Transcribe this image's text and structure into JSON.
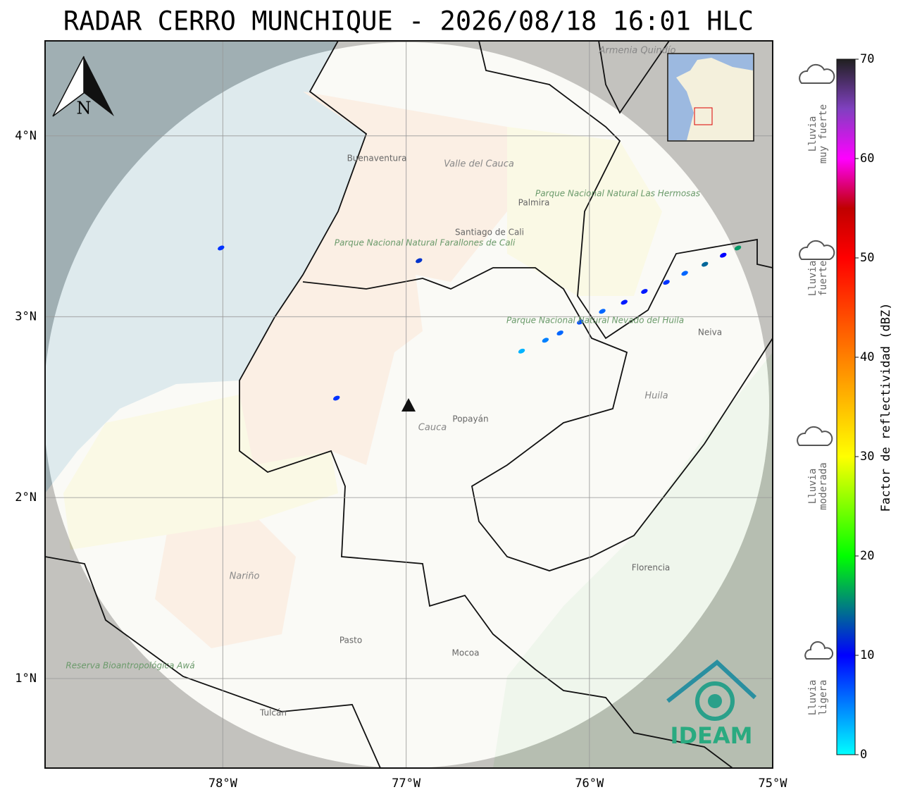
{
  "title": "RADAR CERRO MUNCHIQUE - 2026/08/18 16:01 HLC",
  "map": {
    "xlim": [
      -78.97,
      -75
    ],
    "ylim": [
      0.505,
      4.525
    ],
    "xticks": [
      {
        "value": -78,
        "label": "78°W"
      },
      {
        "value": -77,
        "label": "77°W"
      },
      {
        "value": -76,
        "label": "76°W"
      },
      {
        "value": -75,
        "label": "75°W"
      }
    ],
    "yticks": [
      {
        "value": 1,
        "label": "1°N"
      },
      {
        "value": 2,
        "label": "2°N"
      },
      {
        "value": 3,
        "label": "3°N"
      },
      {
        "value": 4,
        "label": "4°N"
      }
    ],
    "grid": true,
    "north": "N",
    "places": [
      "Buenaventura",
      "Valle del Cauca",
      "Parque Nacional Natural Las Hermosas",
      "Santiago de Cali",
      "Palmira",
      "Parque Nacional Natural Farallones de Cali",
      "Neiva",
      "Huila",
      "Popayán",
      "Cauca",
      "Nariño",
      "Pasto",
      "Mocoa",
      "Florencia",
      "Tulcán",
      "Reserva Bioantropológica Awá",
      "Armenia Quindío",
      "Parque Nacional Natural Nevado del Huila"
    ],
    "logo": "IDEAM",
    "echoes": [
      {
        "lon": -78.01,
        "lat": 3.38,
        "dbz": 8
      },
      {
        "lon": -76.93,
        "lat": 3.31,
        "dbz": 12
      },
      {
        "lon": -77.38,
        "lat": 2.55,
        "dbz": 8
      },
      {
        "lon": -76.37,
        "lat": 2.81,
        "dbz": 3
      },
      {
        "lon": -76.24,
        "lat": 2.87,
        "dbz": 5
      },
      {
        "lon": -76.16,
        "lat": 2.91,
        "dbz": 6
      },
      {
        "lon": -76.05,
        "lat": 2.97,
        "dbz": 7
      },
      {
        "lon": -75.93,
        "lat": 3.03,
        "dbz": 6
      },
      {
        "lon": -75.81,
        "lat": 3.08,
        "dbz": 9
      },
      {
        "lon": -75.7,
        "lat": 3.14,
        "dbz": 9
      },
      {
        "lon": -75.58,
        "lat": 3.19,
        "dbz": 8
      },
      {
        "lon": -75.48,
        "lat": 3.24,
        "dbz": 6
      },
      {
        "lon": -75.37,
        "lat": 3.29,
        "dbz": 14
      },
      {
        "lon": -75.27,
        "lat": 3.34,
        "dbz": 10
      },
      {
        "lon": -75.19,
        "lat": 3.38,
        "dbz": 16
      }
    ]
  },
  "colorbar": {
    "label": "Factor de reflectividad (dBZ)",
    "lim": [
      0,
      70
    ],
    "ticks": [
      0,
      10,
      20,
      30,
      40,
      50,
      60,
      70
    ],
    "stops": [
      [
        0,
        "#00ffff"
      ],
      [
        10,
        "#0000ff"
      ],
      [
        20,
        "#00ff00"
      ],
      [
        30,
        "#ffff00"
      ],
      [
        40,
        "#ff8000"
      ],
      [
        50,
        "#ff0000"
      ],
      [
        55,
        "#c00000"
      ],
      [
        60,
        "#ff00ff"
      ],
      [
        65,
        "#8040c0"
      ],
      [
        70,
        "#202020"
      ]
    ]
  },
  "legend": [
    [
      "Lluvia",
      "muy fuerte"
    ],
    [
      "Lluvia",
      "fuerte"
    ],
    [
      "Lluvia",
      "moderada"
    ],
    [
      "Lluvia",
      "ligera"
    ]
  ]
}
